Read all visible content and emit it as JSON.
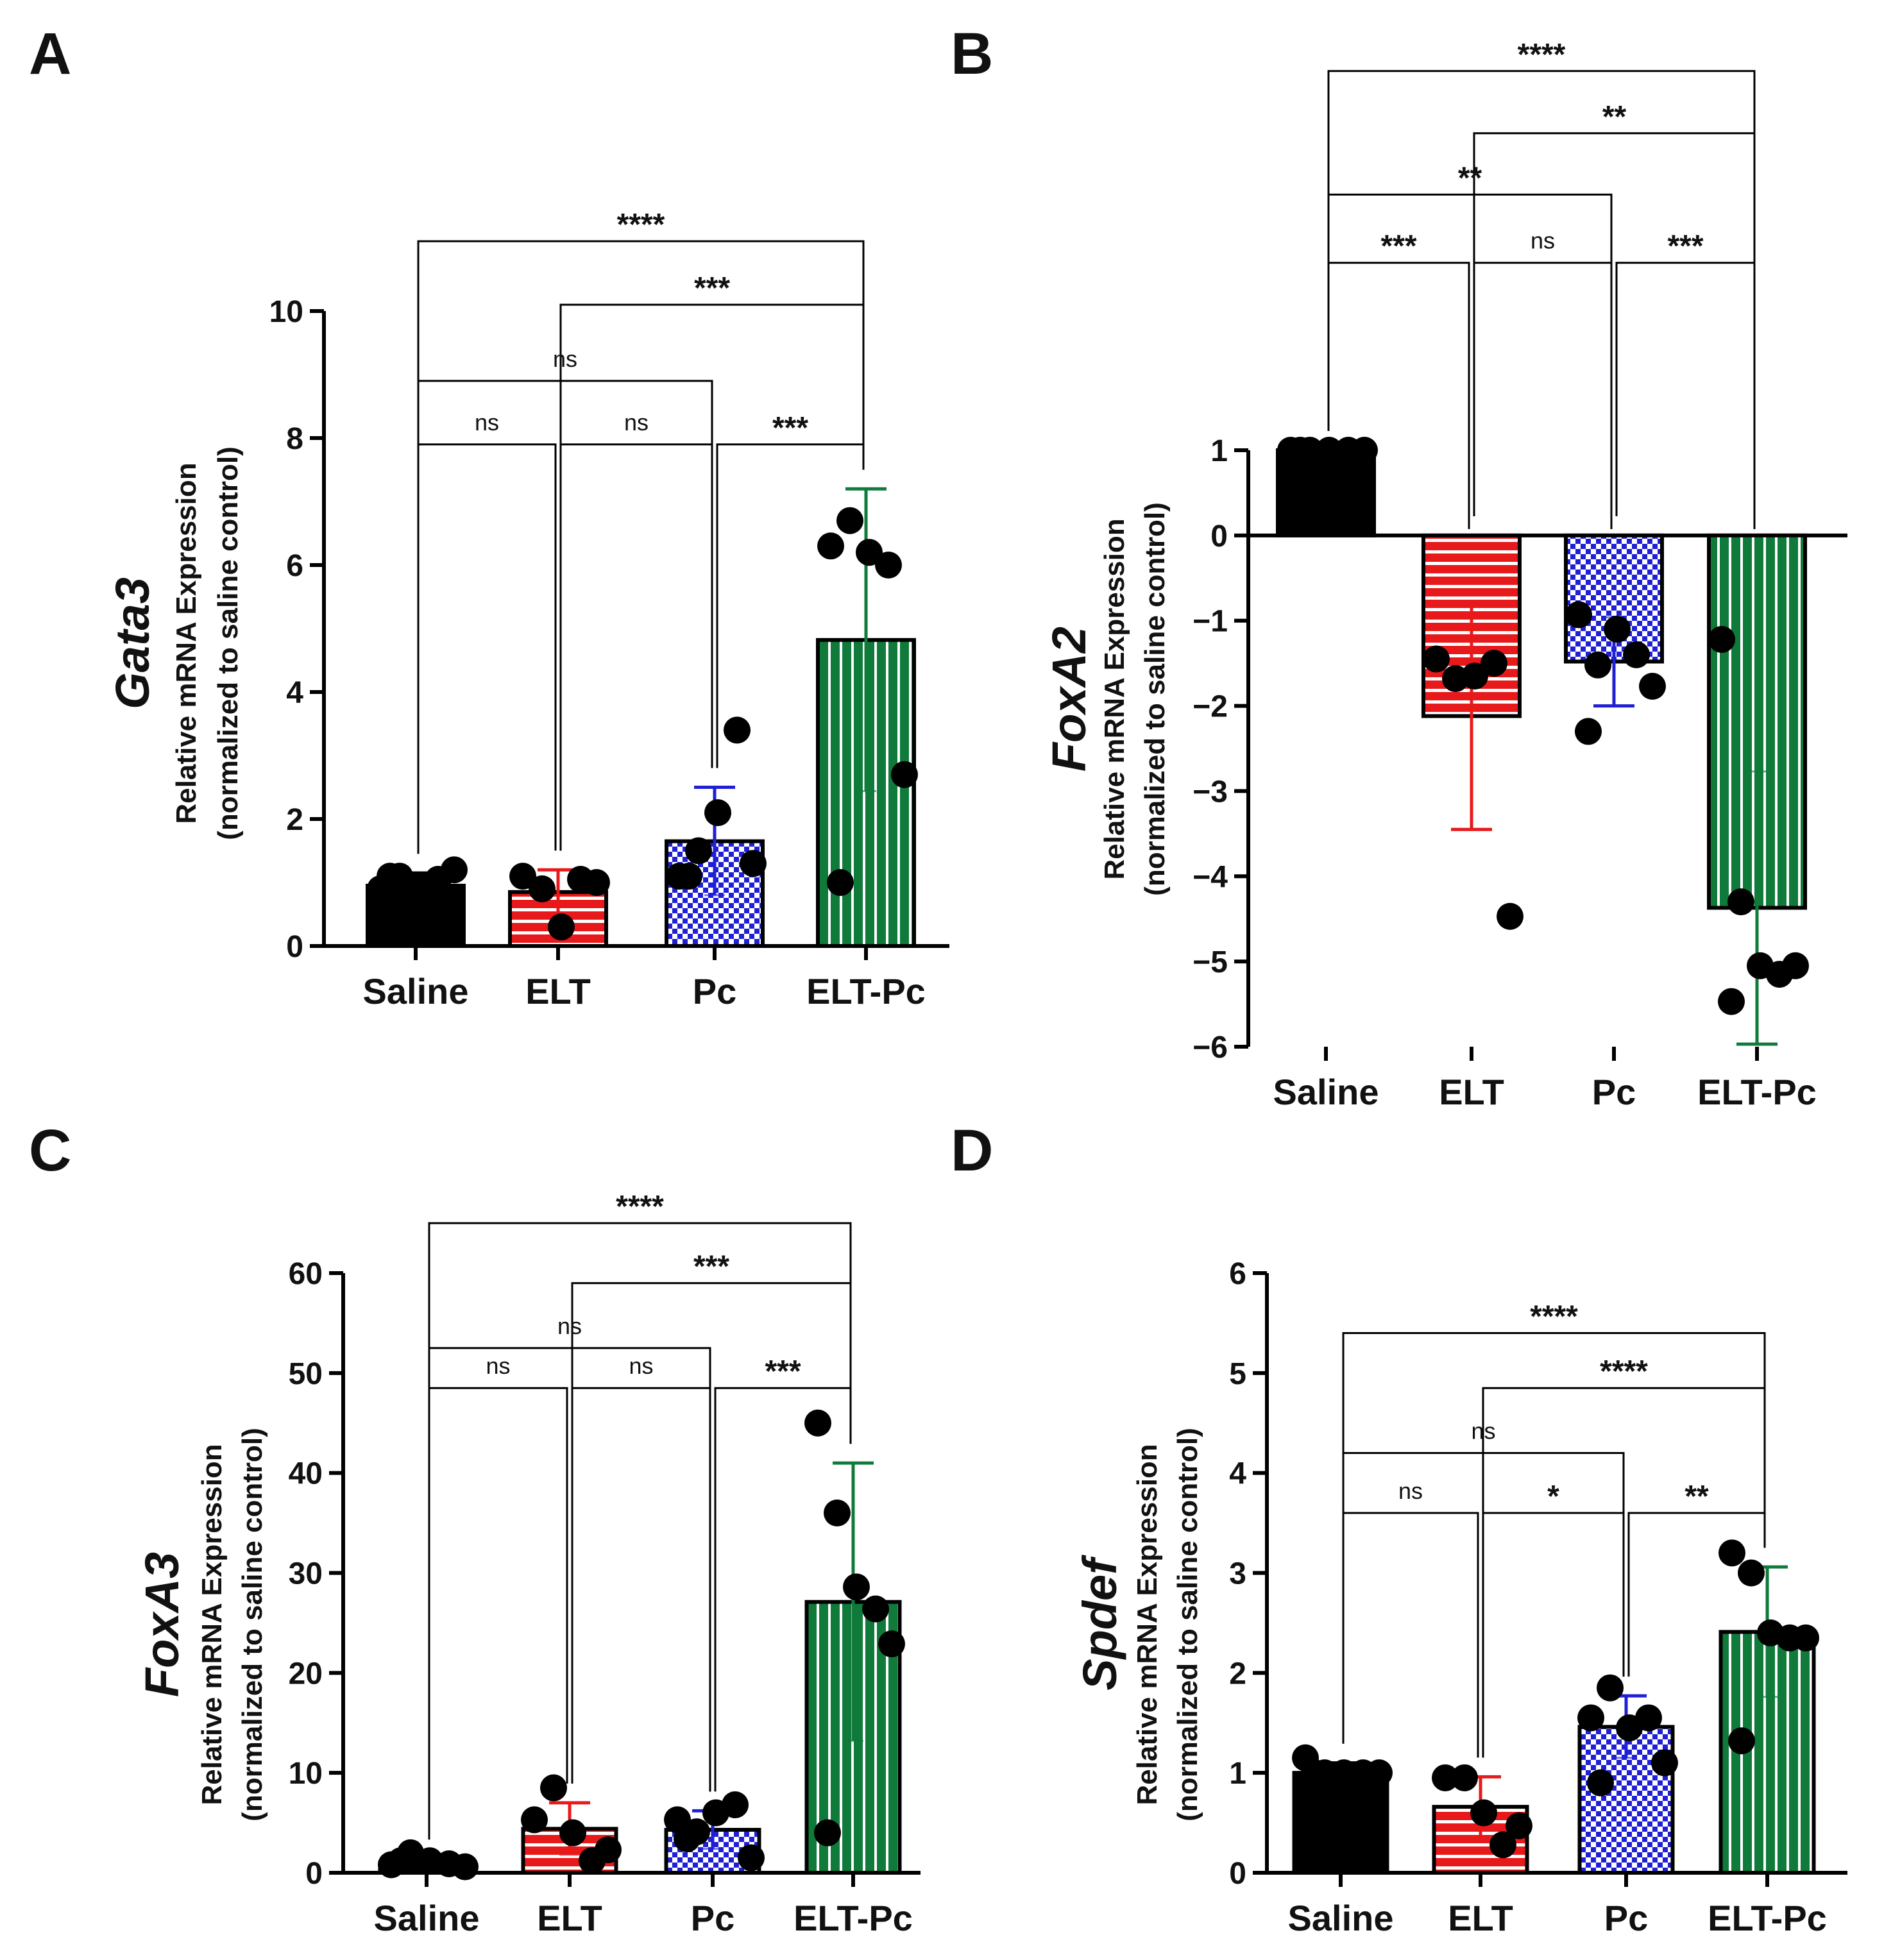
{
  "figure": {
    "colors": {
      "saline": "#000000",
      "elt": "#e8191b",
      "elt_stripe": "#ffffff",
      "pc": "#1f1fd6",
      "pc_check": "#ffffff",
      "eltpc": "#0f7a3a",
      "eltpc_stripe": "#ffffff",
      "axis": "#000000",
      "point": "#000000"
    },
    "series_style": [
      "saline",
      "elt",
      "pc",
      "eltpc"
    ]
  },
  "chart_data": [
    {
      "panel": "A",
      "type": "bar",
      "gene": "Gata3",
      "ylabel_line1": "Relative mRNA Expression",
      "ylabel_line2": "(normalized to saline control)",
      "categories": [
        "Saline",
        "ELT",
        "Pc",
        "ELT-Pc"
      ],
      "values": [
        0.95,
        0.85,
        1.65,
        4.82
      ],
      "errors": [
        0.2,
        0.35,
        0.85,
        2.38
      ],
      "points": [
        [
          0.9,
          1.1,
          0.95,
          1.05,
          1.2,
          1.1
        ],
        [
          1.1,
          0.9,
          0.3,
          1.05,
          1.0
        ],
        [
          1.1,
          1.5,
          2.1,
          3.4,
          1.3,
          1.1
        ],
        [
          6.3,
          6.7,
          6.2,
          6.0,
          2.7,
          1.0
        ]
      ],
      "ylim": [
        0,
        10
      ],
      "yticks": [
        0,
        2,
        4,
        6,
        8,
        10
      ],
      "ytick_labels": [
        "0",
        "2",
        "4",
        "6",
        "8",
        "10"
      ],
      "comparisons": [
        {
          "from": 0,
          "to": 3,
          "label": "****",
          "y": 11.1
        },
        {
          "from": 1,
          "to": 3,
          "label": "***",
          "y": 10.1
        },
        {
          "from": 0,
          "to": 2,
          "label": "ns",
          "y": 8.9
        },
        {
          "from": 0,
          "to": 1,
          "label": "ns",
          "y": 7.9
        },
        {
          "from": 1,
          "to": 2,
          "label": "ns",
          "y": 7.9
        },
        {
          "from": 2,
          "to": 3,
          "label": "***",
          "y": 7.9
        }
      ]
    },
    {
      "panel": "B",
      "type": "bar",
      "gene": "FoxA2",
      "ylabel_line1": "Relative mRNA Expression",
      "ylabel_line2": "(normalized to saline control)",
      "categories": [
        "Saline",
        "ELT",
        "Pc",
        "ELT-Pc"
      ],
      "values": [
        1.0,
        -2.12,
        -1.48,
        -4.37
      ],
      "errors": [
        0.0,
        1.33,
        0.52,
        1.6
      ],
      "points": [
        [
          1.0,
          1.0,
          1.0,
          1.0,
          1.0,
          1.0
        ],
        [
          -1.45,
          -1.68,
          -1.65,
          -1.5,
          -4.47
        ],
        [
          -0.93,
          -1.52,
          -1.1,
          -1.4,
          -1.77,
          -2.3
        ],
        [
          -1.22,
          -4.3,
          -5.05,
          -5.15,
          -5.05,
          -5.47
        ]
      ],
      "ylim": [
        -6,
        1
      ],
      "yticks": [
        -6,
        -5,
        -4,
        -3,
        -2,
        -1,
        0,
        1
      ],
      "ytick_labels": [
        "−6",
        "−5",
        "−4",
        "−3",
        "−2",
        "−1",
        "0",
        "1"
      ],
      "comparisons": [
        {
          "from": 0,
          "to": 3,
          "label": "****",
          "y": 5.45
        },
        {
          "from": 1,
          "to": 3,
          "label": "**",
          "y": 4.72
        },
        {
          "from": 0,
          "to": 2,
          "label": "**",
          "y": 4.0
        },
        {
          "from": 0,
          "to": 1,
          "label": "***",
          "y": 3.2
        },
        {
          "from": 1,
          "to": 2,
          "label": "ns",
          "y": 3.2
        },
        {
          "from": 2,
          "to": 3,
          "label": "***",
          "y": 3.2
        }
      ]
    },
    {
      "panel": "C",
      "type": "bar",
      "gene": "FoxA3",
      "ylabel_line1": "Relative mRNA Expression",
      "ylabel_line2": "(normalized to saline control)",
      "categories": [
        "Saline",
        "ELT",
        "Pc",
        "ELT-Pc"
      ],
      "values": [
        1.0,
        4.4,
        4.3,
        27.1
      ],
      "errors": [
        0.4,
        2.6,
        1.9,
        13.9
      ],
      "points": [
        [
          0.8,
          2.0,
          1.2,
          0.9,
          0.6,
          1.2
        ],
        [
          5.3,
          8.5,
          4.0,
          1.2,
          2.3
        ],
        [
          5.3,
          4.1,
          6.0,
          6.8,
          1.5,
          3.4
        ],
        [
          45.0,
          36.0,
          28.6,
          26.4,
          22.9,
          4.0
        ]
      ],
      "ylim": [
        0,
        60
      ],
      "yticks": [
        0,
        10,
        20,
        30,
        40,
        50,
        60
      ],
      "ytick_labels": [
        "0",
        "10",
        "20",
        "30",
        "40",
        "50",
        "60"
      ],
      "comparisons": [
        {
          "from": 0,
          "to": 3,
          "label": "****",
          "y": 65.0
        },
        {
          "from": 1,
          "to": 3,
          "label": "***",
          "y": 59.0
        },
        {
          "from": 0,
          "to": 2,
          "label": "ns",
          "y": 52.5
        },
        {
          "from": 0,
          "to": 1,
          "label": "ns",
          "y": 48.5
        },
        {
          "from": 1,
          "to": 2,
          "label": "ns",
          "y": 48.5
        },
        {
          "from": 2,
          "to": 3,
          "label": "***",
          "y": 48.5
        }
      ]
    },
    {
      "panel": "D",
      "type": "bar",
      "gene": "Spdef",
      "ylabel_line1": "Relative mRNA Expression",
      "ylabel_line2": "(normalized to saline control)",
      "categories": [
        "Saline",
        "ELT",
        "Pc",
        "ELT-Pc"
      ],
      "values": [
        1.0,
        0.66,
        1.46,
        2.41
      ],
      "errors": [
        0.1,
        0.3,
        0.31,
        0.65
      ],
      "points": [
        [
          1.15,
          1.0,
          1.0,
          1.0,
          1.0,
          1.0
        ],
        [
          0.95,
          0.95,
          0.6,
          0.28,
          0.47
        ],
        [
          1.55,
          1.85,
          1.45,
          1.55,
          1.1,
          0.9
        ],
        [
          3.2,
          3.0,
          2.4,
          2.35,
          2.35,
          1.32
        ]
      ],
      "ylim": [
        0,
        6
      ],
      "yticks": [
        0,
        1,
        2,
        3,
        4,
        5,
        6
      ],
      "ytick_labels": [
        "0",
        "1",
        "2",
        "3",
        "4",
        "5",
        "6"
      ],
      "comparisons": [
        {
          "from": 0,
          "to": 3,
          "label": "****",
          "y": 5.4
        },
        {
          "from": 1,
          "to": 3,
          "label": "****",
          "y": 4.85
        },
        {
          "from": 0,
          "to": 2,
          "label": "ns",
          "y": 4.2
        },
        {
          "from": 0,
          "to": 1,
          "label": "ns",
          "y": 3.6
        },
        {
          "from": 1,
          "to": 2,
          "label": "*",
          "y": 3.6
        },
        {
          "from": 2,
          "to": 3,
          "label": "**",
          "y": 3.6
        }
      ]
    }
  ]
}
